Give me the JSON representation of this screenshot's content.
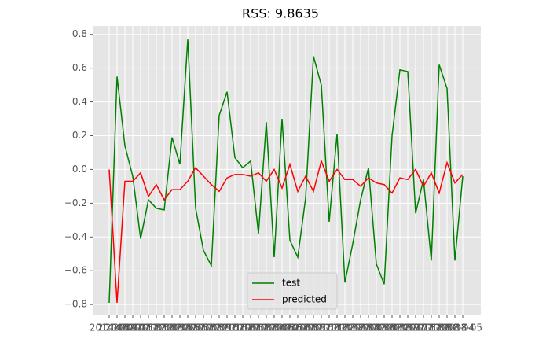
{
  "chart_data": {
    "type": "line",
    "title": "RSS: 9.8635",
    "categories": [
      "2014-08",
      "2014-09",
      "2014-10",
      "2014-11",
      "2014-12",
      "2015-01",
      "2015-02",
      "2015-03",
      "2015-04",
      "2015-05",
      "2015-06",
      "2015-07",
      "2015-08",
      "2015-09",
      "2015-10",
      "2015-11",
      "2015-12",
      "2016-01",
      "2016-02",
      "2016-03",
      "2016-04",
      "2016-05",
      "2016-06",
      "2016-07",
      "2016-08",
      "2016-09",
      "2016-10",
      "2016-11",
      "2016-12",
      "2017-01",
      "2017-02",
      "2017-03",
      "2017-04",
      "2017-05",
      "2017-06",
      "2017-07",
      "2017-08",
      "2017-09",
      "2017-10",
      "2017-11",
      "2017-12",
      "2018-01",
      "2018-02",
      "2018-03",
      "2018-04",
      "2018-05"
    ],
    "series": [
      {
        "name": "test",
        "color": "#008000",
        "values": [
          -0.79,
          0.55,
          0.14,
          -0.04,
          -0.41,
          -0.18,
          -0.23,
          -0.24,
          0.19,
          0.03,
          0.77,
          -0.23,
          -0.48,
          -0.57,
          0.32,
          0.46,
          0.07,
          0.01,
          0.05,
          -0.38,
          0.28,
          -0.52,
          0.3,
          -0.42,
          -0.52,
          -0.17,
          0.67,
          0.5,
          -0.31,
          0.21,
          -0.67,
          -0.44,
          -0.18,
          0.01,
          -0.56,
          -0.68,
          0.2,
          0.59,
          0.58,
          -0.26,
          -0.06,
          -0.54,
          0.62,
          0.48,
          -0.54,
          -0.04
        ]
      },
      {
        "name": "predicted",
        "color": "#ff0000",
        "values": [
          0.0,
          -0.79,
          -0.07,
          -0.07,
          -0.02,
          -0.16,
          -0.09,
          -0.18,
          -0.12,
          -0.12,
          -0.07,
          0.01,
          -0.04,
          -0.09,
          -0.13,
          -0.05,
          -0.03,
          -0.03,
          -0.04,
          -0.02,
          -0.07,
          0.0,
          -0.11,
          0.03,
          -0.13,
          -0.04,
          -0.13,
          0.05,
          -0.07,
          0.0,
          -0.06,
          -0.06,
          -0.1,
          -0.05,
          -0.08,
          -0.09,
          -0.14,
          -0.05,
          -0.06,
          0.0,
          -0.1,
          -0.02,
          -0.14,
          0.04,
          -0.08,
          -0.03
        ]
      }
    ],
    "ylim": [
      -0.86,
      0.85
    ],
    "yticks": [
      {
        "value": -0.8,
        "label": "−0.8"
      },
      {
        "value": -0.6,
        "label": "−0.6"
      },
      {
        "value": -0.4,
        "label": "−0.4"
      },
      {
        "value": -0.2,
        "label": "−0.2"
      },
      {
        "value": 0,
        "label": "0.0"
      },
      0.2,
      0.4,
      0.6,
      0.8
    ],
    "grid": true,
    "legend": "lower center"
  }
}
